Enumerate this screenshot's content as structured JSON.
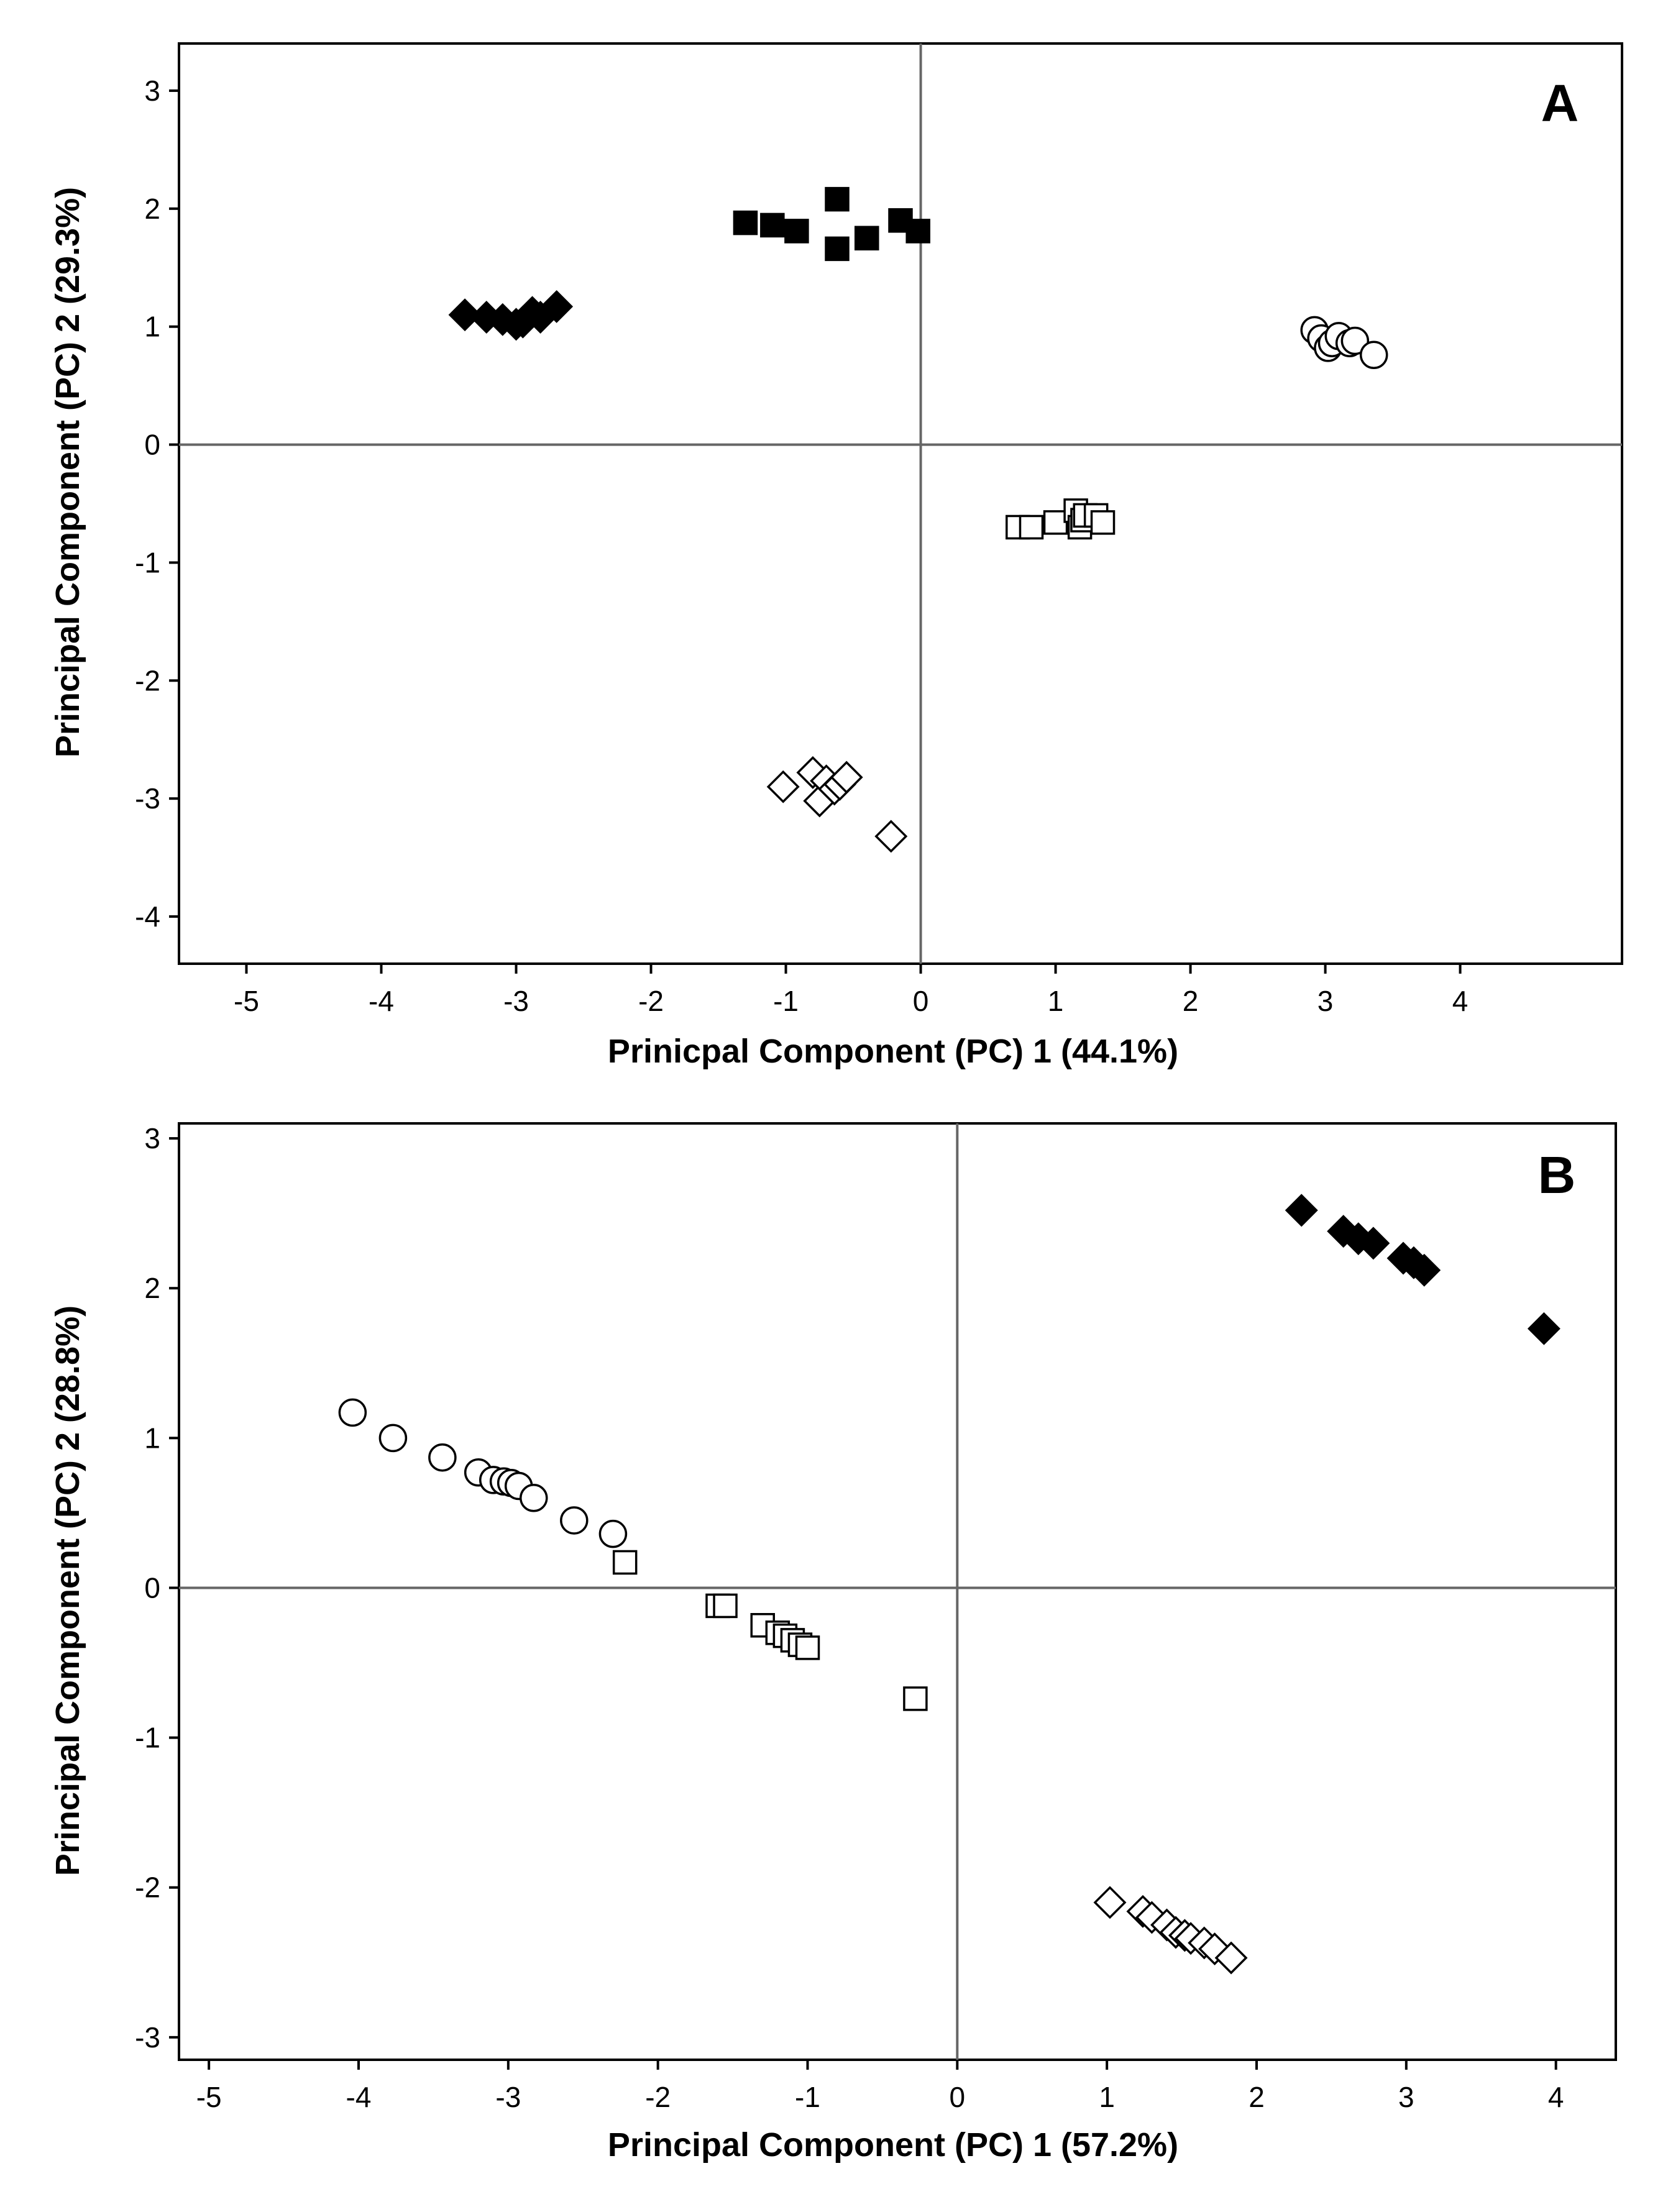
{
  "chart_data": [
    {
      "type": "scatter",
      "panel_label": "A",
      "xlabel": "Prinicpal Component (PC) 1 (44.1%)",
      "ylabel": "Principal Component (PC) 2 (29.3%)",
      "xlim": [
        -5.5,
        5.2
      ],
      "ylim": [
        -4.4,
        3.4
      ],
      "xticks": [
        -5,
        -4,
        -3,
        -2,
        -1,
        0,
        1,
        2,
        3,
        4
      ],
      "yticks": [
        -4,
        -3,
        -2,
        -1,
        0,
        1,
        2,
        3
      ],
      "grid": false,
      "zero_lines": true,
      "series": [
        {
          "name": "filled-diamond",
          "marker": "diamond",
          "filled": true,
          "x": [
            -3.38,
            -3.22,
            -3.1,
            -3.0,
            -2.95,
            -2.88,
            -2.82,
            -2.7
          ],
          "y": [
            1.1,
            1.08,
            1.06,
            1.02,
            1.04,
            1.12,
            1.08,
            1.17
          ]
        },
        {
          "name": "filled-square",
          "marker": "square",
          "filled": true,
          "x": [
            -1.3,
            -1.1,
            -0.92,
            -0.62,
            -0.62,
            -0.4,
            -0.15,
            -0.02
          ],
          "y": [
            1.88,
            1.86,
            1.81,
            2.08,
            1.66,
            1.75,
            1.9,
            1.81
          ]
        },
        {
          "name": "open-circle",
          "marker": "circle",
          "filled": false,
          "x": [
            2.92,
            2.97,
            3.02,
            3.05,
            3.1,
            3.18,
            3.22,
            3.36
          ],
          "y": [
            0.97,
            0.9,
            0.82,
            0.86,
            0.92,
            0.86,
            0.88,
            0.76
          ]
        },
        {
          "name": "open-square",
          "marker": "square",
          "filled": false,
          "x": [
            0.72,
            0.82,
            1.0,
            1.15,
            1.18,
            1.2,
            1.22,
            1.3,
            1.35
          ],
          "y": [
            -0.7,
            -0.7,
            -0.66,
            -0.56,
            -0.7,
            -0.64,
            -0.6,
            -0.6,
            -0.66
          ]
        },
        {
          "name": "open-diamond",
          "marker": "diamond",
          "filled": false,
          "x": [
            -1.02,
            -0.8,
            -0.75,
            -0.7,
            -0.64,
            -0.6,
            -0.55,
            -0.22
          ],
          "y": [
            -2.9,
            -2.78,
            -3.02,
            -2.85,
            -2.92,
            -2.88,
            -2.82,
            -3.32
          ]
        }
      ]
    },
    {
      "type": "scatter",
      "panel_label": "B",
      "xlabel": "Principal Component (PC) 1 (57.2%)",
      "ylabel": "Principal Component (PC) 2 (28.8%)",
      "xlim": [
        -5.2,
        4.4
      ],
      "ylim": [
        -3.15,
        3.1
      ],
      "xticks": [
        -5,
        -4,
        -3,
        -2,
        -1,
        0,
        1,
        2,
        3,
        4
      ],
      "yticks": [
        -3,
        -2,
        -1,
        0,
        1,
        2,
        3
      ],
      "grid": false,
      "zero_lines": true,
      "series": [
        {
          "name": "filled-diamond",
          "marker": "diamond",
          "filled": true,
          "x": [
            2.3,
            2.58,
            2.68,
            2.78,
            2.98,
            3.05,
            3.12,
            3.92
          ],
          "y": [
            2.52,
            2.38,
            2.33,
            2.3,
            2.2,
            2.17,
            2.12,
            1.73
          ]
        },
        {
          "name": "open-circle",
          "marker": "circle",
          "filled": false,
          "x": [
            -4.04,
            -3.77,
            -3.44,
            -3.2,
            -3.1,
            -3.03,
            -2.98,
            -2.93,
            -2.83,
            -2.56,
            -2.3
          ],
          "y": [
            1.17,
            1.0,
            0.87,
            0.77,
            0.72,
            0.71,
            0.7,
            0.68,
            0.6,
            0.45,
            0.36
          ]
        },
        {
          "name": "open-square",
          "marker": "square",
          "filled": false,
          "x": [
            -2.22,
            -1.6,
            -1.55,
            -1.3,
            -1.2,
            -1.15,
            -1.1,
            -1.05,
            -1.0,
            -0.28
          ],
          "y": [
            0.17,
            -0.12,
            -0.12,
            -0.25,
            -0.3,
            -0.32,
            -0.35,
            -0.38,
            -0.4,
            -0.74
          ]
        },
        {
          "name": "open-diamond",
          "marker": "diamond",
          "filled": false,
          "x": [
            1.02,
            1.24,
            1.3,
            1.4,
            1.46,
            1.52,
            1.56,
            1.65,
            1.72,
            1.83
          ],
          "y": [
            -2.1,
            -2.16,
            -2.2,
            -2.25,
            -2.3,
            -2.32,
            -2.34,
            -2.37,
            -2.41,
            -2.47
          ]
        }
      ]
    }
  ]
}
